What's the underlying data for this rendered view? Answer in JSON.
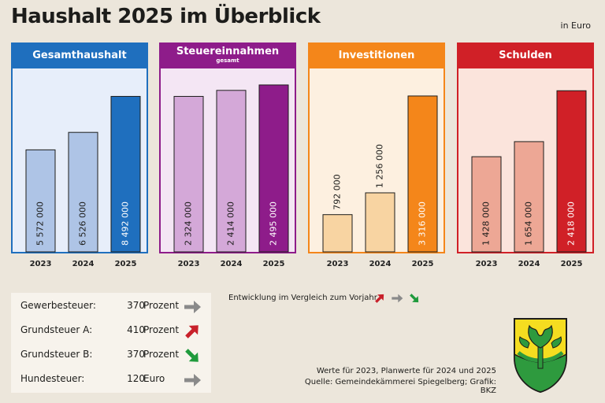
{
  "title": "Haushalt 2025 im Überblick",
  "unit": "in Euro",
  "chart_data": [
    {
      "type": "bar",
      "title": "Gesamthaushalt",
      "categories": [
        "2023",
        "2024",
        "2025"
      ],
      "values": [
        5572000,
        6526000,
        8492000
      ],
      "labels": [
        "5 572 000",
        "6 526 000",
        "8 492 000"
      ],
      "ylim": [
        0,
        9500000
      ],
      "color": "#1f6fbe",
      "light": "#aec4e6",
      "bg": "#e7eefa"
    },
    {
      "type": "bar",
      "title": "Steuereinnahmen",
      "subtitle": "gesamt",
      "categories": [
        "2023",
        "2024",
        "2025"
      ],
      "values": [
        2324000,
        2414000,
        2495000
      ],
      "labels": [
        "2 324 000",
        "2 414 000",
        "2 495 000"
      ],
      "ylim": [
        0,
        2600000
      ],
      "color": "#8e1c8a",
      "light": "#d4a8d8",
      "bg": "#f4e6f4"
    },
    {
      "type": "bar",
      "title": "Investitionen",
      "categories": [
        "2023",
        "2024",
        "2025"
      ],
      "values": [
        792000,
        1256000,
        3316000
      ],
      "labels": [
        "792 000",
        "1 256 000",
        "3 316 000"
      ],
      "ylim": [
        0,
        3700000
      ],
      "color": "#f4861a",
      "light": "#f8d4a2",
      "bg": "#fdf0e0"
    },
    {
      "type": "bar",
      "title": "Schulden",
      "categories": [
        "2023",
        "2024",
        "2025"
      ],
      "values": [
        1428000,
        1654000,
        2418000
      ],
      "labels": [
        "1 428 000",
        "1 654 000",
        "2 418 000"
      ],
      "ylim": [
        0,
        2610000
      ],
      "color": "#d02027",
      "light": "#eda795",
      "bg": "#fbe4dc"
    }
  ],
  "taxes": [
    {
      "label": "Gewerbesteuer:",
      "value": "370",
      "unit": "Prozent",
      "trend": "same"
    },
    {
      "label": "Grundsteuer A:",
      "value": "410",
      "unit": "Prozent",
      "trend": "up"
    },
    {
      "label": "Grundsteuer B:",
      "value": "370",
      "unit": "Prozent",
      "trend": "down"
    },
    {
      "label": "Hundesteuer:",
      "value": "120",
      "unit": "Euro",
      "trend": "same"
    }
  ],
  "legend_text": "Entwicklung im Vergleich zum Vorjahr",
  "colors": {
    "up": "#c8202a",
    "same": "#8a8a8a",
    "down": "#1f9a3c"
  },
  "note_line1": "Werte für 2023, Planwerte für 2024 und 2025",
  "note_line2": "Quelle: Gemeindekämmerei Spiegelberg; Grafik: BKZ"
}
